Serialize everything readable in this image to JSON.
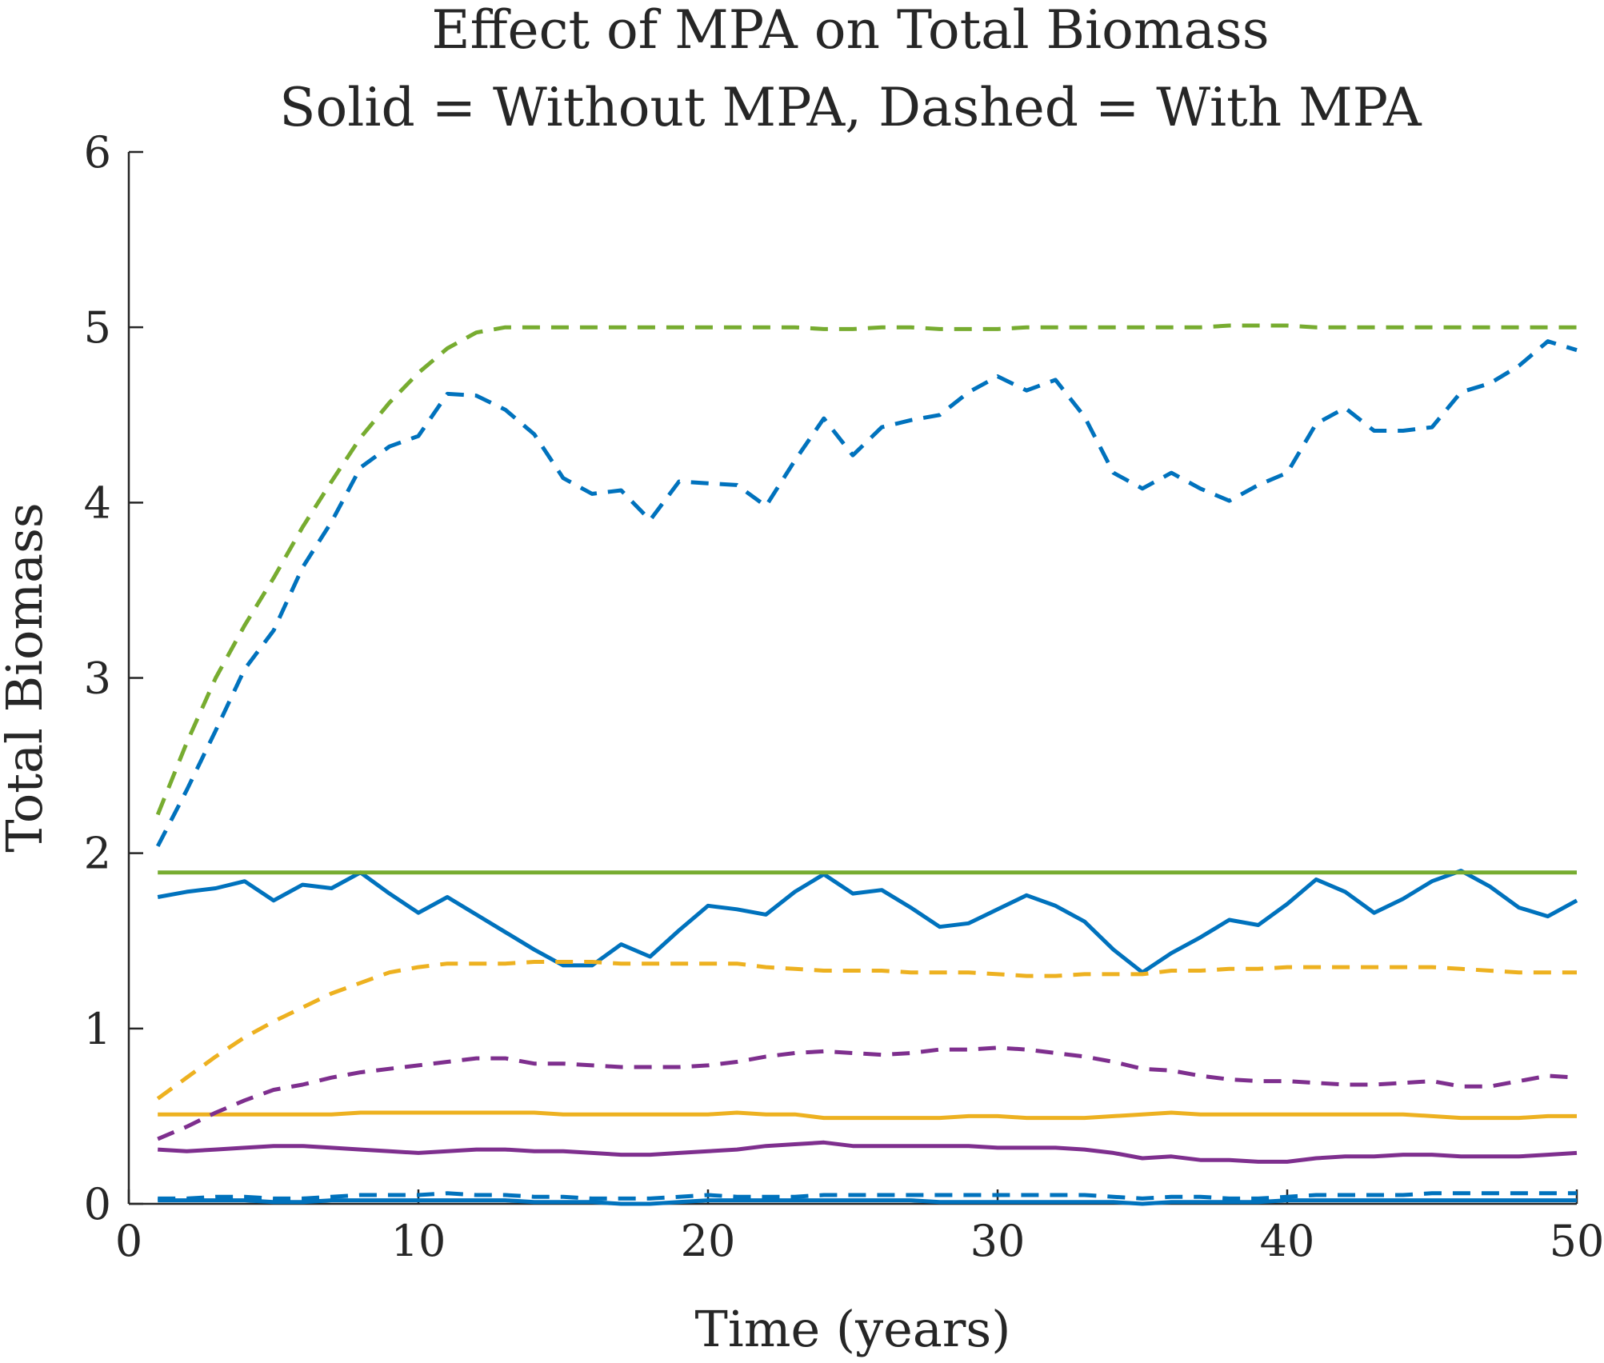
{
  "chart_data": {
    "type": "line",
    "title": "Effect of MPA on Total Biomass",
    "subtitle": "Solid = Without MPA, Dashed = With MPA",
    "xlabel": "Time (years)",
    "ylabel": "Total Biomass",
    "xlim": [
      0,
      50
    ],
    "ylim": [
      0,
      6
    ],
    "xticks": [
      0,
      10,
      20,
      30,
      40,
      50
    ],
    "yticks": [
      0,
      1,
      2,
      3,
      4,
      5,
      6
    ],
    "grid": false,
    "x": [
      1,
      2,
      3,
      4,
      5,
      6,
      7,
      8,
      9,
      10,
      11,
      12,
      13,
      14,
      15,
      16,
      17,
      18,
      19,
      20,
      21,
      22,
      23,
      24,
      25,
      26,
      27,
      28,
      29,
      30,
      31,
      32,
      33,
      34,
      35,
      36,
      37,
      38,
      39,
      40,
      41,
      42,
      43,
      44,
      45,
      46,
      47,
      48,
      49,
      50
    ],
    "series": [
      {
        "color": "#0072BD",
        "style": "solid",
        "values": [
          1.75,
          1.78,
          1.8,
          1.84,
          1.73,
          1.82,
          1.8,
          1.89,
          1.77,
          1.66,
          1.75,
          1.65,
          1.55,
          1.45,
          1.36,
          1.36,
          1.48,
          1.41,
          1.56,
          1.7,
          1.68,
          1.65,
          1.78,
          1.88,
          1.77,
          1.79,
          1.69,
          1.58,
          1.6,
          1.68,
          1.76,
          1.7,
          1.61,
          1.45,
          1.32,
          1.43,
          1.52,
          1.62,
          1.59,
          1.71,
          1.85,
          1.78,
          1.66,
          1.74,
          1.84,
          1.9,
          1.81,
          1.69,
          1.64,
          1.73
        ]
      },
      {
        "color": "#0072BD",
        "style": "dashed",
        "values": [
          2.04,
          2.36,
          2.7,
          3.05,
          3.27,
          3.63,
          3.89,
          4.2,
          4.32,
          4.38,
          4.62,
          4.61,
          4.53,
          4.39,
          4.14,
          4.05,
          4.07,
          3.9,
          4.12,
          4.11,
          4.1,
          3.98,
          4.24,
          4.48,
          4.27,
          4.43,
          4.47,
          4.5,
          4.63,
          4.72,
          4.64,
          4.7,
          4.49,
          4.17,
          4.08,
          4.17,
          4.08,
          4.01,
          4.1,
          4.17,
          4.45,
          4.54,
          4.41,
          4.41,
          4.43,
          4.63,
          4.68,
          4.78,
          4.92,
          4.87
        ]
      },
      {
        "color": "#77AC30",
        "style": "solid",
        "values": [
          1.89,
          1.89,
          1.89,
          1.89,
          1.89,
          1.89,
          1.89,
          1.89,
          1.89,
          1.89,
          1.89,
          1.89,
          1.89,
          1.89,
          1.89,
          1.89,
          1.89,
          1.89,
          1.89,
          1.89,
          1.89,
          1.89,
          1.89,
          1.89,
          1.89,
          1.89,
          1.89,
          1.89,
          1.89,
          1.89,
          1.89,
          1.89,
          1.89,
          1.89,
          1.89,
          1.89,
          1.89,
          1.89,
          1.89,
          1.89,
          1.89,
          1.89,
          1.89,
          1.89,
          1.89,
          1.89,
          1.89,
          1.89,
          1.89,
          1.89
        ]
      },
      {
        "color": "#77AC30",
        "style": "dashed",
        "values": [
          2.22,
          2.63,
          3.0,
          3.3,
          3.57,
          3.86,
          4.12,
          4.37,
          4.57,
          4.74,
          4.88,
          4.97,
          5.0,
          5.0,
          5.0,
          5.0,
          5.0,
          5.0,
          5.0,
          5.0,
          5.0,
          5.0,
          5.0,
          4.99,
          4.99,
          5.0,
          5.0,
          4.99,
          4.99,
          4.99,
          5.0,
          5.0,
          5.0,
          5.0,
          5.0,
          5.0,
          5.0,
          5.01,
          5.01,
          5.01,
          5.0,
          5.0,
          5.0,
          5.0,
          5.0,
          5.0,
          5.0,
          5.0,
          5.0,
          5.0
        ]
      },
      {
        "color": "#EDB120",
        "style": "solid",
        "values": [
          0.51,
          0.51,
          0.51,
          0.51,
          0.51,
          0.51,
          0.51,
          0.52,
          0.52,
          0.52,
          0.52,
          0.52,
          0.52,
          0.52,
          0.51,
          0.51,
          0.51,
          0.51,
          0.51,
          0.51,
          0.52,
          0.51,
          0.51,
          0.49,
          0.49,
          0.49,
          0.49,
          0.49,
          0.5,
          0.5,
          0.49,
          0.49,
          0.49,
          0.5,
          0.51,
          0.52,
          0.51,
          0.51,
          0.51,
          0.51,
          0.51,
          0.51,
          0.51,
          0.51,
          0.5,
          0.49,
          0.49,
          0.49,
          0.5,
          0.5
        ]
      },
      {
        "color": "#EDB120",
        "style": "dashed",
        "values": [
          0.6,
          0.72,
          0.84,
          0.95,
          1.04,
          1.12,
          1.2,
          1.26,
          1.32,
          1.35,
          1.37,
          1.37,
          1.37,
          1.38,
          1.38,
          1.38,
          1.37,
          1.37,
          1.37,
          1.37,
          1.37,
          1.35,
          1.34,
          1.33,
          1.33,
          1.33,
          1.32,
          1.32,
          1.32,
          1.31,
          1.3,
          1.3,
          1.31,
          1.31,
          1.31,
          1.33,
          1.33,
          1.34,
          1.34,
          1.35,
          1.35,
          1.35,
          1.35,
          1.35,
          1.35,
          1.34,
          1.33,
          1.32,
          1.32,
          1.32
        ]
      },
      {
        "color": "#7E2F8E",
        "style": "solid",
        "values": [
          0.31,
          0.3,
          0.31,
          0.32,
          0.33,
          0.33,
          0.32,
          0.31,
          0.3,
          0.29,
          0.3,
          0.31,
          0.31,
          0.3,
          0.3,
          0.29,
          0.28,
          0.28,
          0.29,
          0.3,
          0.31,
          0.33,
          0.34,
          0.35,
          0.33,
          0.33,
          0.33,
          0.33,
          0.33,
          0.32,
          0.32,
          0.32,
          0.31,
          0.29,
          0.26,
          0.27,
          0.25,
          0.25,
          0.24,
          0.24,
          0.26,
          0.27,
          0.27,
          0.28,
          0.28,
          0.27,
          0.27,
          0.27,
          0.28,
          0.29
        ]
      },
      {
        "color": "#7E2F8E",
        "style": "dashed",
        "values": [
          0.37,
          0.44,
          0.52,
          0.59,
          0.65,
          0.68,
          0.72,
          0.75,
          0.77,
          0.79,
          0.81,
          0.83,
          0.83,
          0.8,
          0.8,
          0.79,
          0.78,
          0.78,
          0.78,
          0.79,
          0.81,
          0.84,
          0.86,
          0.87,
          0.86,
          0.85,
          0.86,
          0.88,
          0.88,
          0.89,
          0.88,
          0.86,
          0.84,
          0.81,
          0.77,
          0.76,
          0.73,
          0.71,
          0.7,
          0.7,
          0.69,
          0.68,
          0.68,
          0.69,
          0.7,
          0.67,
          0.67,
          0.7,
          0.73,
          0.72
        ]
      },
      {
        "color": "#0072BD",
        "style": "solid",
        "values": [
          0.02,
          0.02,
          0.02,
          0.02,
          0.01,
          0.01,
          0.02,
          0.02,
          0.02,
          0.02,
          0.02,
          0.02,
          0.02,
          0.01,
          0.01,
          0.01,
          0.0,
          0.0,
          0.01,
          0.02,
          0.02,
          0.02,
          0.02,
          0.02,
          0.02,
          0.02,
          0.02,
          0.01,
          0.01,
          0.01,
          0.01,
          0.01,
          0.01,
          0.01,
          0.0,
          0.01,
          0.01,
          0.01,
          0.01,
          0.02,
          0.02,
          0.02,
          0.02,
          0.02,
          0.02,
          0.02,
          0.02,
          0.02,
          0.02,
          0.02
        ]
      },
      {
        "color": "#0072BD",
        "style": "dashed",
        "values": [
          0.03,
          0.03,
          0.04,
          0.04,
          0.03,
          0.03,
          0.04,
          0.05,
          0.05,
          0.05,
          0.06,
          0.05,
          0.05,
          0.04,
          0.04,
          0.03,
          0.03,
          0.03,
          0.04,
          0.05,
          0.04,
          0.04,
          0.04,
          0.05,
          0.05,
          0.05,
          0.05,
          0.05,
          0.05,
          0.05,
          0.05,
          0.05,
          0.05,
          0.04,
          0.03,
          0.04,
          0.04,
          0.03,
          0.03,
          0.04,
          0.05,
          0.05,
          0.05,
          0.05,
          0.06,
          0.06,
          0.06,
          0.06,
          0.06,
          0.06
        ]
      }
    ]
  }
}
